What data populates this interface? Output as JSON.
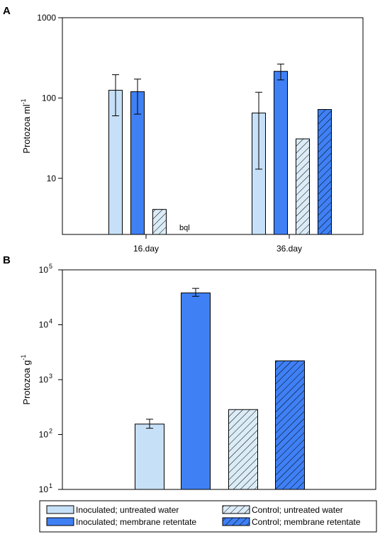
{
  "colors": {
    "inoculated_untreated": "#c6e0f8",
    "inoculated_retentate": "#3f80f5",
    "control_untreated": "#dbecf7",
    "control_retentate": "#3f80f5",
    "hatch": "#000000"
  },
  "legend": {
    "items": [
      {
        "key": "inoculated_untreated",
        "label": "Inoculated; untreated water",
        "hatched": false
      },
      {
        "key": "control_untreated",
        "label": "Control; untreated water",
        "hatched": true
      },
      {
        "key": "inoculated_retentate",
        "label": "Inoculated; membrane retentate",
        "hatched": false
      },
      {
        "key": "control_retentate",
        "label": "Control; membrane retentate",
        "hatched": true
      }
    ]
  },
  "chart_data": [
    {
      "panel": "A",
      "type": "bar",
      "scale": "log",
      "ylabel_main": "Protozoa ml",
      "ylabel_sup": "-1",
      "xlabel": "",
      "ylim": [
        2,
        1000
      ],
      "yticks": [
        {
          "value": 10,
          "label": "10"
        },
        {
          "value": 100,
          "label": "100"
        },
        {
          "value": 1000,
          "label": "1000"
        }
      ],
      "categories": [
        "16.day",
        "36.day"
      ],
      "series": [
        {
          "key": "inoculated_untreated",
          "values": [
            125,
            65
          ],
          "err_low": [
            60,
            13
          ],
          "err_high": [
            195,
            118
          ]
        },
        {
          "key": "inoculated_retentate",
          "values": [
            120,
            215
          ],
          "err_low": [
            63,
            168
          ],
          "err_high": [
            172,
            265
          ]
        },
        {
          "key": "control_untreated",
          "values": [
            4.1,
            31
          ],
          "err_low": [
            null,
            null
          ],
          "err_high": [
            null,
            null
          ]
        },
        {
          "key": "control_retentate",
          "values": [
            null,
            72
          ],
          "err_low": [
            null,
            null
          ],
          "err_high": [
            null,
            null
          ]
        }
      ],
      "annotations": [
        {
          "text": "bql",
          "category": "16.day",
          "series": "control_retentate"
        }
      ]
    },
    {
      "panel": "B",
      "type": "bar",
      "scale": "log",
      "ylabel_main": "Protozoa g",
      "ylabel_sup": "-1",
      "xlabel": "",
      "ylim": [
        10,
        100000
      ],
      "yticks": [
        {
          "value": 10,
          "base": "10",
          "exp": "1"
        },
        {
          "value": 100,
          "base": "10",
          "exp": "2"
        },
        {
          "value": 1000,
          "base": "10",
          "exp": "3"
        },
        {
          "value": 10000,
          "base": "10",
          "exp": "4"
        },
        {
          "value": 100000,
          "base": "10",
          "exp": "5"
        }
      ],
      "series": [
        {
          "key": "inoculated_untreated",
          "value": 155,
          "err_low": 130,
          "err_high": 190
        },
        {
          "key": "inoculated_retentate",
          "value": 38000,
          "err_low": 33000,
          "err_high": 46000
        },
        {
          "key": "control_untreated",
          "value": 285,
          "err_low": null,
          "err_high": null
        },
        {
          "key": "control_retentate",
          "value": 2200,
          "err_low": null,
          "err_high": null
        }
      ]
    }
  ]
}
